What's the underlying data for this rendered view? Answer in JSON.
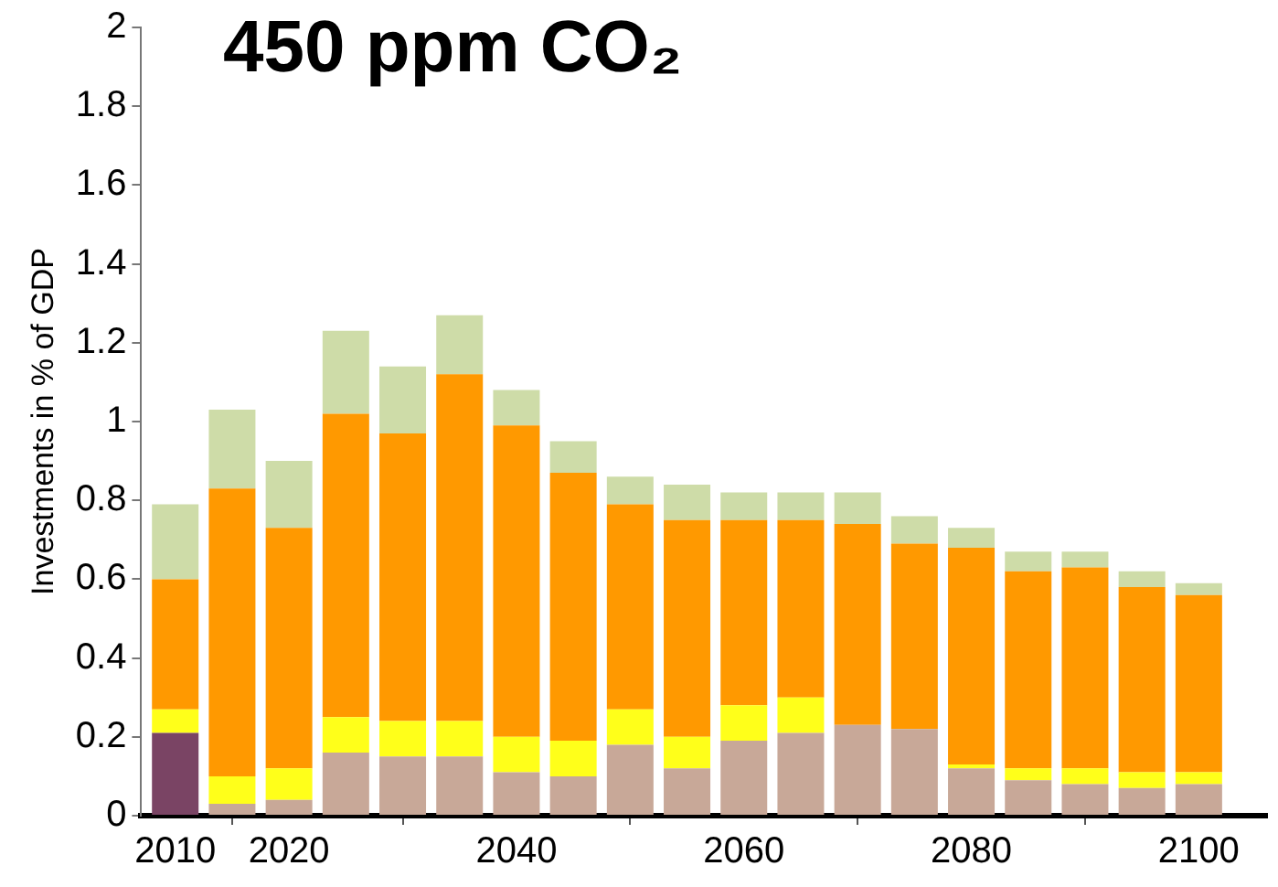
{
  "chart_data": {
    "type": "bar",
    "title": "450 ppm CO₂",
    "ylabel": "Investments in % of GDP",
    "stacked": true,
    "x": [
      2010,
      2015,
      2020,
      2025,
      2030,
      2035,
      2040,
      2045,
      2050,
      2055,
      2060,
      2065,
      2070,
      2075,
      2080,
      2085,
      2090,
      2095,
      2100
    ],
    "xlim": [
      2007,
      2106
    ],
    "xticks": [
      2010,
      2020,
      2040,
      2060,
      2080,
      2100
    ],
    "ylim": [
      0,
      2
    ],
    "yticks": [
      0,
      0.2,
      0.4,
      0.6,
      0.8,
      1,
      1.2,
      1.4,
      1.6,
      1.8,
      2
    ],
    "grid": false,
    "legend": false,
    "series": [
      {
        "color": "#7a4464",
        "values": [
          0.21,
          0,
          0,
          0,
          0,
          0,
          0,
          0,
          0,
          0,
          0,
          0,
          0,
          0,
          0,
          0,
          0,
          0,
          0
        ]
      },
      {
        "color": "#c8a898",
        "values": [
          0,
          0.03,
          0.04,
          0.16,
          0.15,
          0.15,
          0.11,
          0.1,
          0.18,
          0.12,
          0.19,
          0.21,
          0.23,
          0.22,
          0.12,
          0.09,
          0.08,
          0.07,
          0.08
        ]
      },
      {
        "color": "#ffff1a",
        "values": [
          0.06,
          0.07,
          0.08,
          0.09,
          0.09,
          0.09,
          0.09,
          0.09,
          0.09,
          0.08,
          0.09,
          0.09,
          0,
          0,
          0.01,
          0.03,
          0.04,
          0.04,
          0.03
        ]
      },
      {
        "color": "#ff9900",
        "values": [
          0.33,
          0.73,
          0.61,
          0.77,
          0.73,
          0.88,
          0.79,
          0.68,
          0.52,
          0.55,
          0.47,
          0.45,
          0.51,
          0.47,
          0.55,
          0.5,
          0.51,
          0.47,
          0.45
        ]
      },
      {
        "color": "#cedca8",
        "values": [
          0.19,
          0.2,
          0.17,
          0.21,
          0.17,
          0.15,
          0.09,
          0.08,
          0.07,
          0.09,
          0.07,
          0.07,
          0.08,
          0.07,
          0.05,
          0.05,
          0.04,
          0.04,
          0.03
        ]
      }
    ]
  }
}
